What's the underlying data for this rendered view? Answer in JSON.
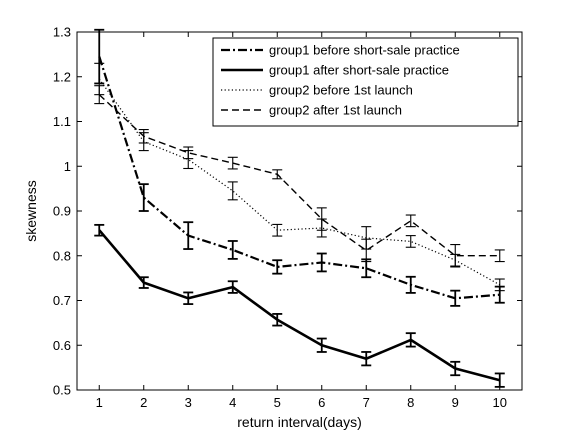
{
  "chart_data": {
    "type": "line",
    "title": "",
    "xlabel": "return interval(days)",
    "ylabel": "skewness",
    "xlim": [
      0.5,
      10.5
    ],
    "ylim": [
      0.5,
      1.3
    ],
    "x": [
      1,
      2,
      3,
      4,
      5,
      6,
      7,
      8,
      9,
      10
    ],
    "x_ticks": [
      1,
      2,
      3,
      4,
      5,
      6,
      7,
      8,
      9,
      10
    ],
    "y_ticks": [
      0.5,
      0.6,
      0.7,
      0.8,
      0.9,
      1.0,
      1.1,
      1.2,
      1.3
    ],
    "y_tick_labels": [
      "0.5",
      "0.6",
      "0.7",
      "0.8",
      "0.9",
      "1",
      "1.1",
      "1.2",
      "1.3"
    ],
    "grid": false,
    "legend_position": "top-right",
    "error_bars": true,
    "series": [
      {
        "name": "group1 before short-sale practice",
        "style": "dashdot",
        "values": [
          1.245,
          0.93,
          0.845,
          0.813,
          0.775,
          0.785,
          0.772,
          0.735,
          0.705,
          0.713
        ],
        "errors": [
          0.06,
          0.03,
          0.03,
          0.02,
          0.015,
          0.02,
          0.02,
          0.018,
          0.017,
          0.018
        ]
      },
      {
        "name": "group1 after short-sale practice",
        "style": "solid",
        "values": [
          0.857,
          0.74,
          0.705,
          0.73,
          0.657,
          0.6,
          0.57,
          0.612,
          0.548,
          0.522
        ],
        "errors": [
          0.012,
          0.012,
          0.013,
          0.013,
          0.013,
          0.015,
          0.015,
          0.015,
          0.015,
          0.015
        ]
      },
      {
        "name": "group2 before 1st launch",
        "style": "dotted",
        "values": [
          1.195,
          1.055,
          1.015,
          0.945,
          0.857,
          0.862,
          0.84,
          0.832,
          0.79,
          0.735
        ],
        "errors": [
          0.035,
          0.02,
          0.02,
          0.02,
          0.013,
          0.02,
          0.025,
          0.013,
          0.013,
          0.013
        ]
      },
      {
        "name": "group2 after 1st launch",
        "style": "dashed",
        "values": [
          1.16,
          1.067,
          1.03,
          1.007,
          0.982,
          0.882,
          0.812,
          0.878,
          0.8,
          0.8
        ],
        "errors": [
          0.02,
          0.015,
          0.013,
          0.013,
          0.01,
          0.025,
          0.025,
          0.013,
          0.025,
          0.013
        ]
      }
    ]
  }
}
